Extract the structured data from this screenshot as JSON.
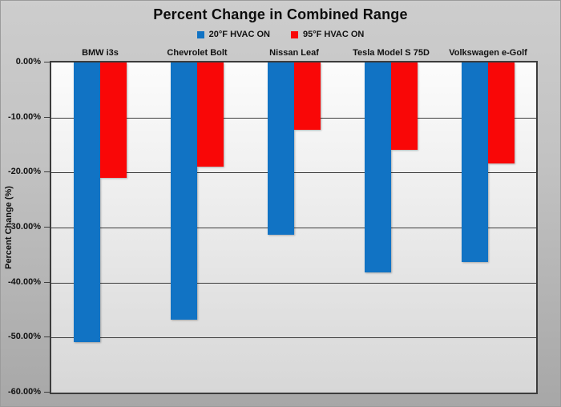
{
  "title": "Percent Change in Combined Range",
  "legend": [
    {
      "label": "20°F HVAC ON",
      "color": "#1173C4"
    },
    {
      "label": "95°F HVAC ON",
      "color": "#F90707"
    }
  ],
  "y_axis": {
    "title": "Percent Change (%)",
    "ticks": [
      "0.00%",
      "-10.00%",
      "-20.00%",
      "-30.00%",
      "-40.00%",
      "-50.00%",
      "-60.00%"
    ]
  },
  "chart_data": {
    "type": "bar",
    "title": "Percent Change in Combined Range",
    "categories": [
      "BMW i3s",
      "Chevrolet Bolt",
      "Nissan Leaf",
      "Tesla Model S 75D",
      "Volkswagen e-Golf"
    ],
    "series": [
      {
        "name": "20°F HVAC ON",
        "color": "#1173C4",
        "values": [
          -50.8,
          -46.7,
          -31.3,
          -38.1,
          -36.2
        ]
      },
      {
        "name": "95°F HVAC ON",
        "color": "#F90707",
        "values": [
          -21.0,
          -19.0,
          -12.3,
          -15.9,
          -18.3
        ]
      }
    ],
    "xlabel": "",
    "ylabel": "Percent Change (%)",
    "ylim": [
      -60,
      0
    ],
    "ytick_step": 10,
    "grid": true,
    "legend_position": "top-center",
    "plot_background": "gradient-white-to-gray",
    "page_background": "gray-gradient"
  }
}
